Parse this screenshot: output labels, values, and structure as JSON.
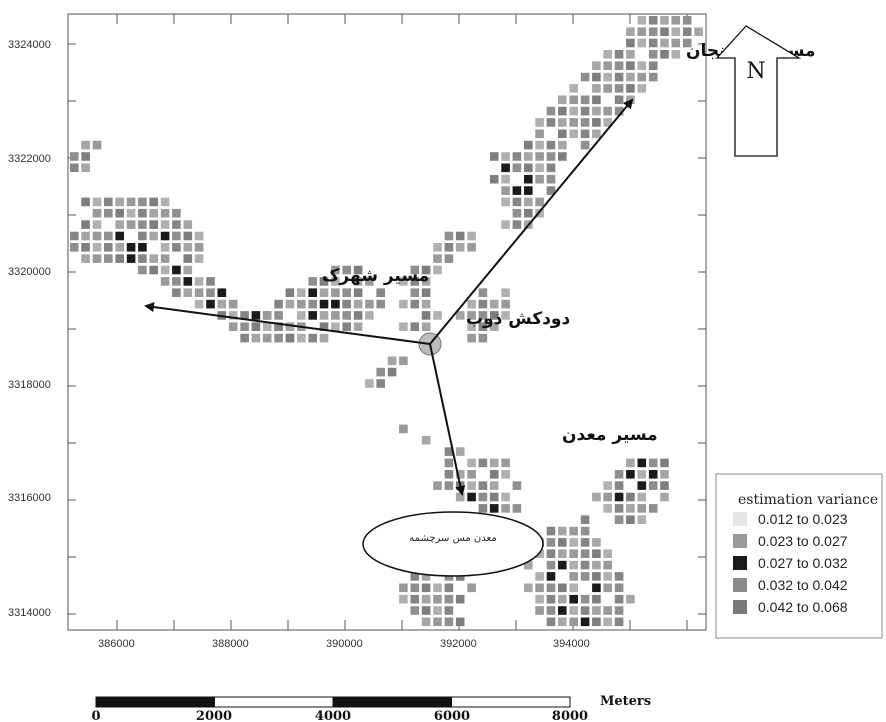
{
  "map": {
    "x_ticks": [
      "386000",
      "388000",
      "390000",
      "392000",
      "394000"
    ],
    "y_ticks": [
      "3324000",
      "3322000",
      "3320000",
      "3318000",
      "3316000",
      "3314000"
    ],
    "routes": {
      "rafsanjan": "مسیر رفسنجان",
      "shahrak": "مسیر شهرک",
      "madan": "مسیر معدن",
      "smelter": "دودکش ذوب"
    },
    "mine_label": "معدن مس سرچشمه",
    "north_label": "N"
  },
  "legend": {
    "title": "estimation variance",
    "items": [
      {
        "label": "0.012  to  0.023",
        "color": "#e6e6e6"
      },
      {
        "label": "0.023  to  0.027",
        "color": "#9a9a9a"
      },
      {
        "label": "0.027  to  0.032",
        "color": "#1a1a1a"
      },
      {
        "label": "0.032  to  0.042",
        "color": "#8c8c8c"
      },
      {
        "label": "0.042  to  0.068",
        "color": "#7a7a7a"
      }
    ]
  },
  "scale_bar": {
    "ticks": [
      "0",
      "2000",
      "4000",
      "6000",
      "8000"
    ],
    "unit": "Meters"
  }
}
